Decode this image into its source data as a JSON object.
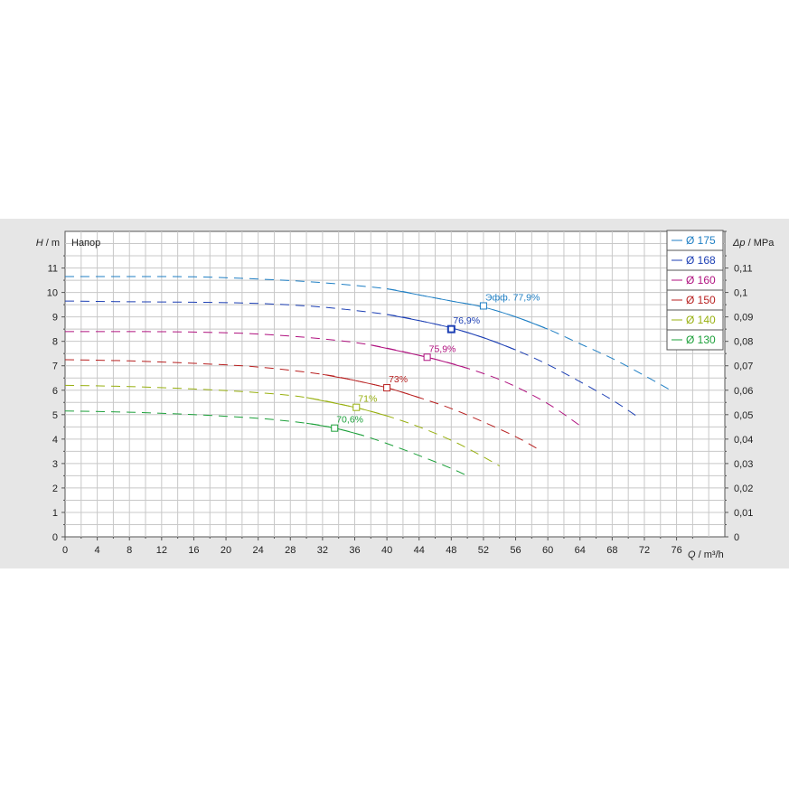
{
  "chart_data": {
    "type": "line",
    "title": "Напор",
    "y_label_symbol": "H",
    "y_label_unit": "m",
    "x_label_symbol": "Q",
    "x_label_unit": "m³/h",
    "y2_label_symbol": "Δp",
    "y2_label_unit": "MPa",
    "xlim": [
      0,
      82
    ],
    "ylim": [
      0,
      12.5
    ],
    "y2lim": [
      0,
      0.125
    ],
    "x_ticks": [
      "0",
      "4",
      "8",
      "12",
      "16",
      "20",
      "24",
      "28",
      "32",
      "36",
      "40",
      "44",
      "48",
      "52",
      "56",
      "60",
      "64",
      "68",
      "72",
      "76"
    ],
    "y_ticks": [
      "0",
      "1",
      "2",
      "3",
      "4",
      "5",
      "6",
      "7",
      "8",
      "9",
      "10",
      "11"
    ],
    "y2_ticks": [
      "0",
      "0,01",
      "0,02",
      "0,03",
      "0,04",
      "0,05",
      "0,06",
      "0,07",
      "0,08",
      "0,09",
      "0,1",
      "0,11"
    ],
    "grid": true,
    "legend_position": "top-right",
    "series": [
      {
        "name": "Ø 175",
        "color": "#1f7fc4",
        "x": [
          0,
          8,
          16,
          24,
          32,
          40,
          44,
          48,
          52,
          56,
          60,
          64,
          68,
          72,
          75
        ],
        "y": [
          10.65,
          10.65,
          10.64,
          10.55,
          10.4,
          10.15,
          9.9,
          9.65,
          9.4,
          9.0,
          8.5,
          7.9,
          7.3,
          6.6,
          6.05
        ],
        "eff_x": 52,
        "eff_y": 9.45,
        "eff_label": "Эфф.  77,9%"
      },
      {
        "name": "Ø 168",
        "color": "#1c3fb4",
        "x": [
          0,
          8,
          16,
          24,
          32,
          40,
          44,
          48,
          52,
          56,
          60,
          64,
          68,
          71
        ],
        "y": [
          9.65,
          9.62,
          9.6,
          9.55,
          9.4,
          9.1,
          8.85,
          8.55,
          8.15,
          7.65,
          7.05,
          6.35,
          5.6,
          4.95
        ],
        "eff_x": 48,
        "eff_y": 8.5,
        "eff_label": "76,9%"
      },
      {
        "name": "Ø 160",
        "color": "#b0127f",
        "x": [
          0,
          8,
          16,
          24,
          32,
          38,
          45,
          50,
          55,
          60,
          64
        ],
        "y": [
          8.4,
          8.4,
          8.38,
          8.3,
          8.1,
          7.85,
          7.35,
          6.9,
          6.3,
          5.45,
          4.55
        ],
        "eff_x": 45,
        "eff_y": 7.35,
        "eff_label": "75,9%"
      },
      {
        "name": "Ø 150",
        "color": "#b82020",
        "x": [
          0,
          8,
          16,
          24,
          32,
          36,
          40,
          44,
          48,
          52,
          56,
          59
        ],
        "y": [
          7.25,
          7.2,
          7.1,
          6.95,
          6.65,
          6.4,
          6.1,
          5.7,
          5.25,
          4.7,
          4.1,
          3.55
        ],
        "eff_x": 40,
        "eff_y": 6.1,
        "eff_label": "73%"
      },
      {
        "name": "Ø 140",
        "color": "#98b010",
        "x": [
          0,
          8,
          16,
          24,
          30,
          36,
          40,
          44,
          48,
          51,
          54
        ],
        "y": [
          6.2,
          6.15,
          6.05,
          5.9,
          5.7,
          5.3,
          4.95,
          4.5,
          3.95,
          3.45,
          2.9
        ],
        "eff_x": 36.2,
        "eff_y": 5.3,
        "eff_label": "71%"
      },
      {
        "name": "Ø 130",
        "color": "#1ca03a",
        "x": [
          0,
          8,
          16,
          24,
          30,
          33.5,
          37,
          41,
          45,
          48,
          50
        ],
        "y": [
          5.15,
          5.1,
          5.0,
          4.85,
          4.65,
          4.45,
          4.15,
          3.7,
          3.2,
          2.8,
          2.5
        ],
        "eff_x": 33.5,
        "eff_y": 4.45,
        "eff_label": "70,6%"
      }
    ]
  }
}
